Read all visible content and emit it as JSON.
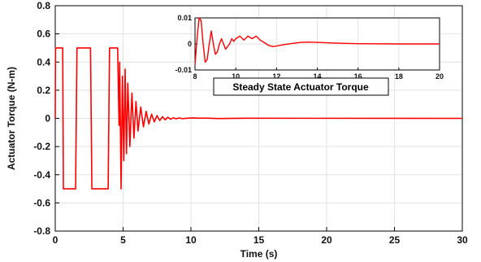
{
  "chart_data": [
    {
      "type": "line",
      "title": "",
      "xlabel": "Time (s)",
      "ylabel": "Actuator Torque (N-m)",
      "xlim": [
        0,
        30
      ],
      "ylim": [
        -0.8,
        0.8
      ],
      "xticks": [
        "0",
        "5",
        "10",
        "15",
        "20",
        "25",
        "30"
      ],
      "yticks": [
        "-0.8",
        "-0.6",
        "-0.4",
        "-0.2",
        "0",
        "0.2",
        "0.4",
        "0.6",
        "0.8"
      ],
      "grid": true,
      "line_color": "#ff0000",
      "series": [
        {
          "x": [
            0.0,
            0.02,
            0.1,
            0.55,
            0.6,
            1.5,
            1.6,
            2.6,
            2.7,
            3.9,
            4.0,
            4.6,
            4.7,
            4.75,
            4.85,
            4.95,
            5.05,
            5.15,
            5.25,
            5.35,
            5.5,
            5.65,
            5.8,
            5.95,
            6.1,
            6.3,
            6.5,
            6.7,
            6.9,
            7.1,
            7.3,
            7.5,
            7.7,
            7.9,
            8.1,
            8.3,
            8.5,
            8.7,
            8.9,
            9.1,
            9.4,
            9.8,
            10.2,
            10.6,
            11.0,
            12.0,
            14.0,
            30.0
          ],
          "y": [
            0.0,
            0.5,
            0.5,
            0.5,
            -0.5,
            -0.5,
            0.5,
            0.5,
            -0.5,
            -0.5,
            0.5,
            0.5,
            -0.05,
            0.4,
            -0.5,
            0.3,
            -0.3,
            0.35,
            -0.25,
            0.25,
            -0.2,
            0.18,
            -0.14,
            0.12,
            -0.09,
            0.08,
            -0.06,
            0.05,
            -0.04,
            0.03,
            -0.025,
            0.02,
            -0.015,
            0.012,
            -0.01,
            0.008,
            -0.006,
            0.004,
            -0.003,
            0.003,
            -0.002,
            0.002,
            0.003,
            0.001,
            0.002,
            -0.001,
            0.001,
            0.0
          ]
        }
      ]
    },
    {
      "type": "line",
      "title": "Steady State Actuator Torque",
      "xlabel": "",
      "ylabel": "",
      "xlim": [
        8,
        20
      ],
      "ylim": [
        -0.01,
        0.01
      ],
      "xticks": [
        "8",
        "10",
        "12",
        "14",
        "16",
        "18",
        "20"
      ],
      "yticks": [
        "-0.01",
        "0",
        "0.01"
      ],
      "grid": true,
      "line_color": "#ff0000",
      "series": [
        {
          "x": [
            8.0,
            8.1,
            8.2,
            8.3,
            8.4,
            8.5,
            8.6,
            8.7,
            8.8,
            8.9,
            9.0,
            9.1,
            9.2,
            9.3,
            9.4,
            9.5,
            9.6,
            9.7,
            9.8,
            9.9,
            10.0,
            10.2,
            10.4,
            10.6,
            10.8,
            11.0,
            11.2,
            11.4,
            11.6,
            11.8,
            12.0,
            12.4,
            12.8,
            13.2,
            13.6,
            14.0,
            15.0,
            16.0,
            18.0,
            20.0
          ],
          "y": [
            -0.008,
            0.002,
            0.01,
            0.009,
            0.0,
            -0.007,
            -0.006,
            0.0,
            0.005,
            0.0,
            -0.004,
            -0.003,
            0.0,
            0.002,
            0.0,
            -0.002,
            -0.001,
            0.0,
            0.002,
            0.001,
            0.002,
            0.003,
            0.0015,
            0.003,
            0.002,
            0.003,
            0.0015,
            0.0005,
            -0.0005,
            -0.001,
            -0.0008,
            -0.0002,
            0.0002,
            0.0006,
            0.0007,
            0.0006,
            0.0003,
            0.0001,
            0.0,
            0.0
          ]
        }
      ]
    }
  ]
}
